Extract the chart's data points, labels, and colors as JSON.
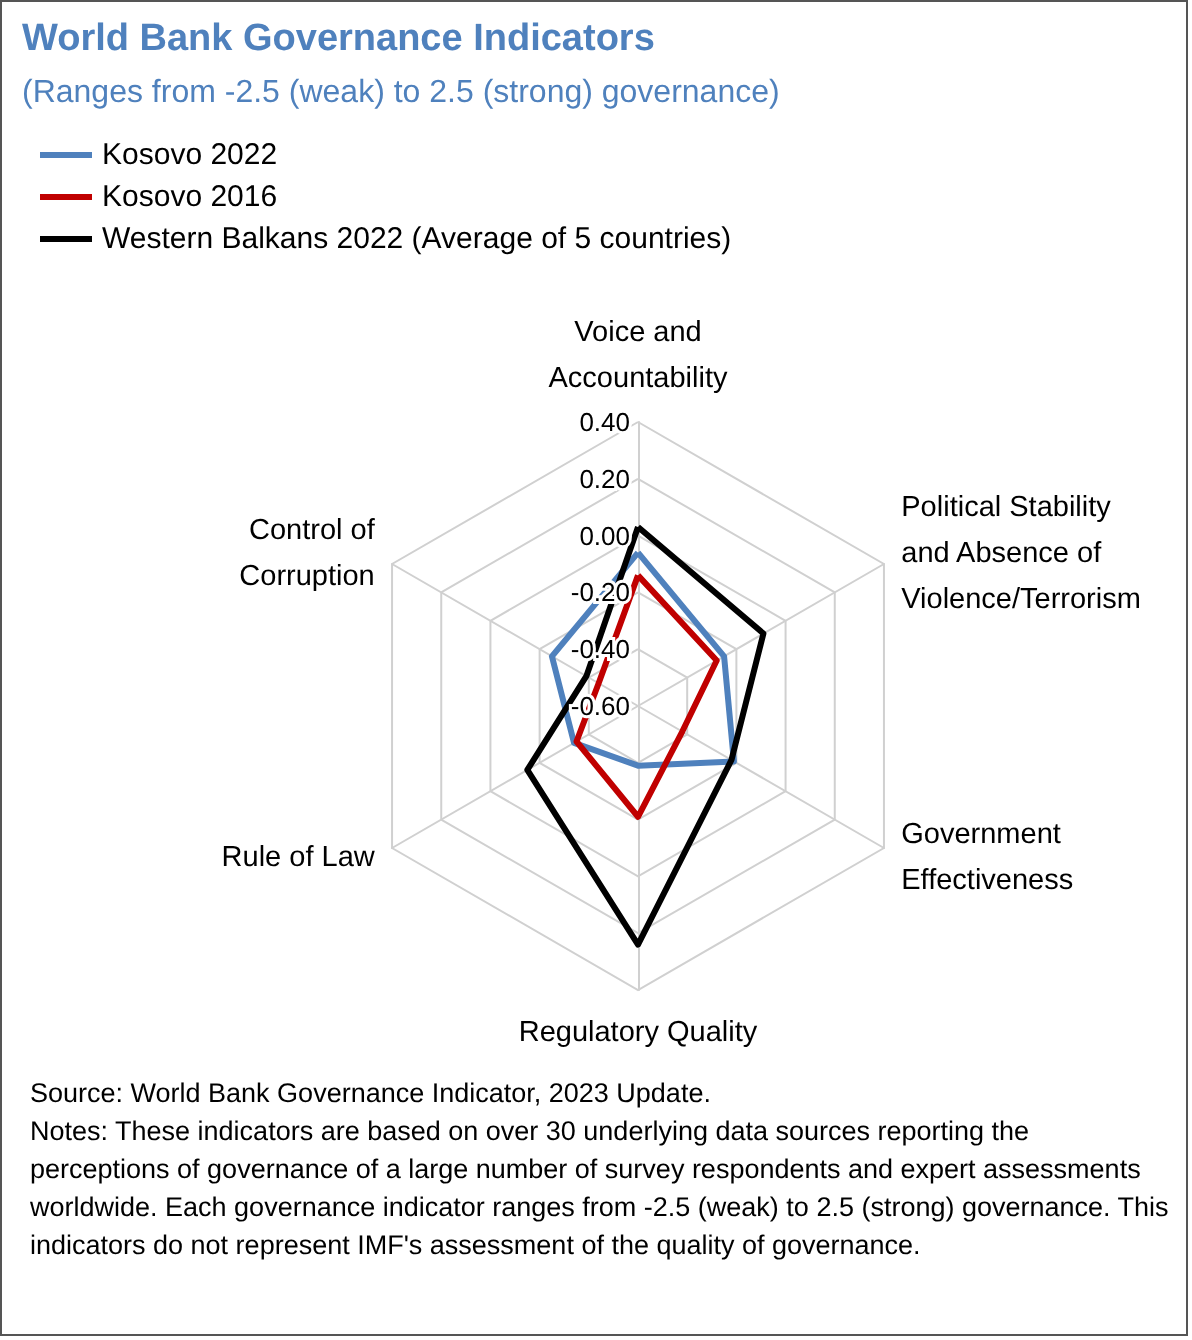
{
  "chart_data": {
    "type": "radar",
    "title": "World Bank Governance Indicators",
    "subtitle": "(Ranges from -2.5 (weak) to 2.5 (strong) governance)",
    "categories": [
      "Voice and\nAccountability",
      "Political Stability\nand Absence of\nViolence/Terrorism",
      "Government\nEffectiveness",
      "Regulatory Quality",
      "Rule of Law",
      "Control of\nCorruption"
    ],
    "series": [
      {
        "name": "Kosovo 2022",
        "color": "#4f81bd",
        "values": [
          -0.06,
          -0.25,
          -0.21,
          -0.39,
          -0.34,
          -0.25
        ]
      },
      {
        "name": "Kosovo 2016",
        "color": "#c00000",
        "values": [
          -0.14,
          -0.28,
          -0.42,
          -0.21,
          -0.35,
          -0.44
        ]
      },
      {
        "name": "Western Balkans 2022 (Average of 5 countries)",
        "color": "#000000",
        "values": [
          0.03,
          -0.09,
          -0.22,
          0.24,
          -0.15,
          -0.39
        ]
      }
    ],
    "ylim": [
      -0.6,
      0.4
    ],
    "yticks": [
      {
        "value": -0.6,
        "label": "-0.60"
      },
      {
        "value": -0.4,
        "label": "-0.40"
      },
      {
        "value": -0.2,
        "label": "-0.20"
      },
      {
        "value": 0,
        "label": "0.00"
      },
      {
        "value": 0.2,
        "label": "0.20"
      },
      {
        "value": 0.4,
        "label": "0.40"
      }
    ],
    "legend": "top left",
    "grid": true,
    "marker": "none",
    "annotations": [
      "Source: World Bank Governance Indicator, 2023 Update.",
      "Notes: These indicators are based on  over 30 underlying data sources reporting the perceptions of governance of a large number of survey  respondents and expert assessments worldwide. Each governance indicator ranges from -2.5 (weak) to 2.5 (strong) governance. This indicators do not represent IMF's assessment of the quality of governance."
    ]
  }
}
